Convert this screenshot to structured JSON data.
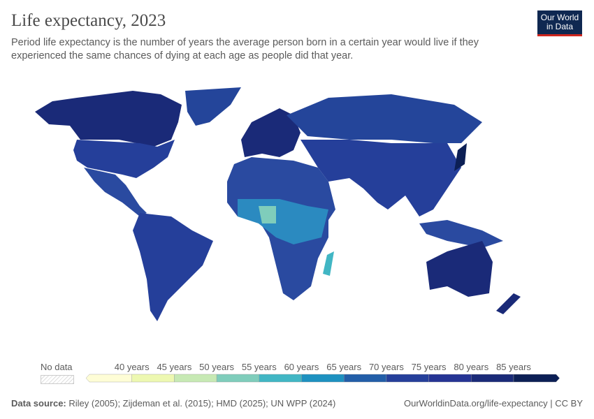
{
  "header": {
    "title": "Life expectancy, 2023",
    "subtitle": "Period life expectancy is the number of years the average person born in a certain year would live if they experienced the same chances of dying at each age as people did that year.",
    "logo_text": "Our World in Data"
  },
  "legend": {
    "no_data_label": "No data",
    "bins": [
      {
        "label": "",
        "color": "#fefdd6"
      },
      {
        "label": "40 years",
        "color": "#edf8b1"
      },
      {
        "label": "45 years",
        "color": "#c7e9b4"
      },
      {
        "label": "50 years",
        "color": "#7fcdbb"
      },
      {
        "label": "55 years",
        "color": "#41b6c4"
      },
      {
        "label": "60 years",
        "color": "#1d91c0"
      },
      {
        "label": "65 years",
        "color": "#225ea8"
      },
      {
        "label": "70 years",
        "color": "#253f9a"
      },
      {
        "label": "75 years",
        "color": "#253494"
      },
      {
        "label": "80 years",
        "color": "#1a2a78"
      },
      {
        "label": "85 years",
        "color": "#0c1f55"
      }
    ]
  },
  "footer": {
    "source_label": "Data source:",
    "source_text": "Riley (2005); Zijdeman et al. (2015); HMD (2025); UN WPP (2024)",
    "url_license": "OurWorldinData.org/life-expectancy | CC BY"
  }
}
